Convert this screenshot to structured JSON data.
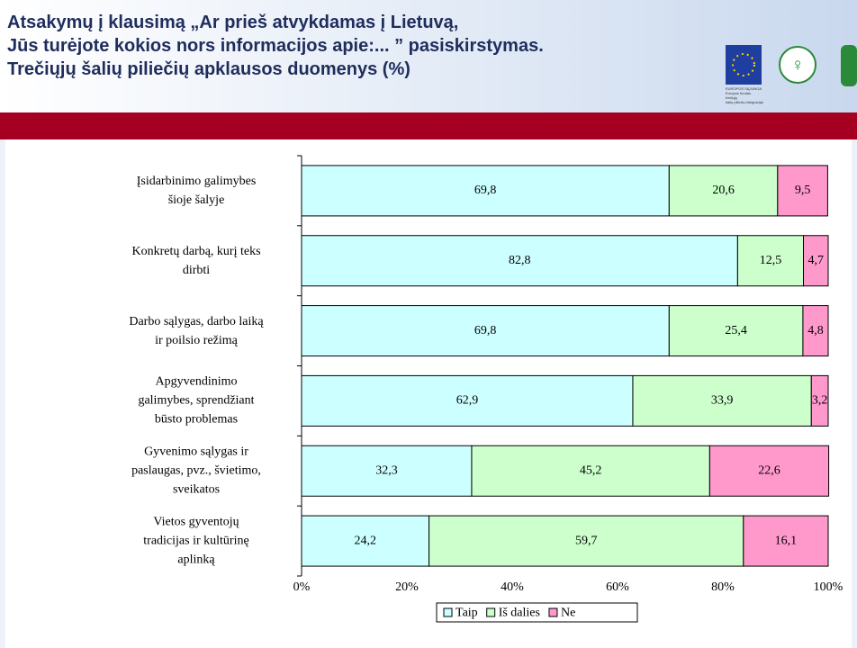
{
  "header": {
    "title": "Atsakymų į klausimą „Ar prieš atvykdamas į Lietuvą,\nJūs turėjote kokios nors informacijos apie:... ” pasiskirstymas.\nTrečiųjų šalių piliečių apklausos duomenys (%)",
    "logo_text": "EUROPOS SĄJUNGA\nEuropos fondas trečiųjų\nšalių piliečių integracijai"
  },
  "chart_data": {
    "type": "stacked-barh",
    "categories": [
      "Įsidarbinimo galimybes\nšioje šalyje",
      "Konkretų darbą, kurį teks\ndirbti",
      "Darbo sąlygas, darbo laiką\nir poilsio režimą",
      "Apgyvendinimo\ngalimybes, sprendžiant\nbūsto problemas",
      "Gyvenimo sąlygas ir\npaslaugas, pvz., švietimo,\nsveikatos",
      "Vietos gyventojų\ntradicijas ir kultūrinę\naplinką"
    ],
    "series": [
      {
        "name": "Taip",
        "color": "#ccffff",
        "values": [
          69.8,
          82.8,
          69.8,
          62.9,
          32.3,
          24.2
        ],
        "value_labels": [
          "69,8",
          "82,8",
          "69,8",
          "62,9",
          "32,3",
          "24,2"
        ]
      },
      {
        "name": "Iš dalies",
        "color": "#ccffcc",
        "values": [
          20.6,
          12.5,
          25.4,
          33.9,
          45.2,
          59.7
        ],
        "value_labels": [
          "20,6",
          "12,5",
          "25,4",
          "33,9",
          "45,2",
          "59,7"
        ]
      },
      {
        "name": "Ne",
        "color": "#ff99cc",
        "values": [
          9.5,
          4.7,
          4.8,
          3.2,
          22.6,
          16.1
        ],
        "value_labels": [
          "9,5",
          "4,7",
          "4,8",
          "3,2",
          "22,6",
          "16,1"
        ]
      }
    ],
    "xlim": [
      0,
      100
    ],
    "xticks": [
      {
        "value": 0,
        "label": "0%"
      },
      {
        "value": 20,
        "label": "20%"
      },
      {
        "value": 40,
        "label": "40%"
      },
      {
        "value": 60,
        "label": "60%"
      },
      {
        "value": 80,
        "label": "80%"
      },
      {
        "value": 100,
        "label": "100%"
      }
    ],
    "legend": "bottom"
  }
}
